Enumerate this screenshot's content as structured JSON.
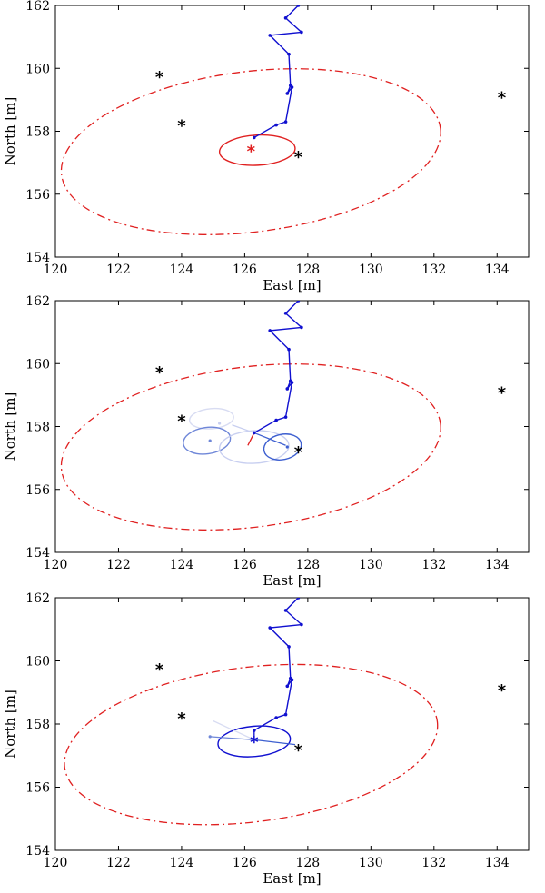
{
  "chart_data": [
    {
      "type": "line",
      "xlabel": "East [m]",
      "ylabel": "North [m]",
      "xlim": [
        120,
        135
      ],
      "ylim": [
        154,
        162
      ],
      "xticks": [
        "120",
        "122",
        "124",
        "126",
        "128",
        "130",
        "132",
        "134"
      ],
      "yticks": [
        "154",
        "156",
        "158",
        "160",
        "162"
      ],
      "legend": "none",
      "grid": false,
      "colors": {
        "trajectory": "#1010d0",
        "uncertainty": "#e02020",
        "landmark": "#000000"
      },
      "landmarks": [
        [
          123.3,
          159.75
        ],
        [
          124.0,
          158.2
        ],
        [
          127.7,
          157.2
        ],
        [
          134.15,
          159.1
        ]
      ],
      "trajectory": [
        [
          127.7,
          162.0
        ],
        [
          127.3,
          161.6
        ],
        [
          127.8,
          161.15
        ],
        [
          126.8,
          161.05
        ],
        [
          127.4,
          160.45
        ],
        [
          127.45,
          159.45
        ],
        [
          127.35,
          159.2
        ],
        [
          127.5,
          159.4
        ],
        [
          127.3,
          158.3
        ],
        [
          127.0,
          158.2
        ],
        [
          126.3,
          157.8
        ]
      ],
      "estimate": {
        "x": 126.2,
        "y": 157.4,
        "color": "#e02020"
      },
      "large_ellipse": {
        "cx": 126.2,
        "cy": 157.35,
        "rx": 6.05,
        "ry": 2.55,
        "angle_deg": -7,
        "color": "#e02020",
        "style": "dash-dot"
      },
      "small_ellipses": [
        {
          "cx": 126.4,
          "cy": 157.4,
          "rx": 1.2,
          "ry": 0.48,
          "angle_deg": -3,
          "color": "#e02020"
        }
      ],
      "branches": []
    },
    {
      "type": "line",
      "xlabel": "East [m]",
      "ylabel": "North [m]",
      "xlim": [
        120,
        135
      ],
      "ylim": [
        154,
        162
      ],
      "xticks": [
        "120",
        "122",
        "124",
        "126",
        "128",
        "130",
        "132",
        "134"
      ],
      "yticks": [
        "154",
        "156",
        "158",
        "160",
        "162"
      ],
      "legend": "none",
      "grid": false,
      "colors": {
        "trajectory": "#1010d0",
        "uncertainty": "#e02020",
        "landmark": "#000000"
      },
      "landmarks": [
        [
          123.3,
          159.75
        ],
        [
          124.0,
          158.2
        ],
        [
          127.7,
          157.2
        ],
        [
          134.15,
          159.1
        ]
      ],
      "trajectory": [
        [
          127.7,
          162.0
        ],
        [
          127.3,
          161.6
        ],
        [
          127.8,
          161.15
        ],
        [
          126.8,
          161.05
        ],
        [
          127.4,
          160.45
        ],
        [
          127.45,
          159.45
        ],
        [
          127.35,
          159.2
        ],
        [
          127.5,
          159.4
        ],
        [
          127.3,
          158.3
        ],
        [
          127.0,
          158.2
        ],
        [
          126.3,
          157.8
        ]
      ],
      "estimate": null,
      "large_ellipse": {
        "cx": 126.2,
        "cy": 157.35,
        "rx": 6.05,
        "ry": 2.55,
        "angle_deg": -7,
        "color": "#e02020",
        "style": "dash-dot"
      },
      "small_ellipses": [
        {
          "cx": 124.95,
          "cy": 158.25,
          "rx": 0.7,
          "ry": 0.32,
          "angle_deg": -5,
          "color": "#d8dcf2"
        },
        {
          "cx": 124.8,
          "cy": 157.55,
          "rx": 0.75,
          "ry": 0.42,
          "angle_deg": -8,
          "color": "#6f87d8"
        },
        {
          "cx": 126.3,
          "cy": 157.35,
          "rx": 1.1,
          "ry": 0.52,
          "angle_deg": -3,
          "color": "#c8cff0"
        },
        {
          "cx": 127.2,
          "cy": 157.35,
          "rx": 0.6,
          "ry": 0.4,
          "angle_deg": -12,
          "color": "#3d5fd0"
        }
      ],
      "branches": [
        {
          "from": [
            126.3,
            157.8
          ],
          "to": [
            126.1,
            157.4
          ],
          "color": "#e02020"
        },
        {
          "from": [
            126.3,
            157.8
          ],
          "to": [
            125.6,
            158.05
          ],
          "color": "#c8cff0"
        },
        {
          "from": [
            126.3,
            157.8
          ],
          "to": [
            127.3,
            157.4
          ],
          "color": "#3d5fd0"
        }
      ],
      "branch_points": [
        {
          "x": 125.2,
          "y": 158.1,
          "color": "#c8cff0"
        },
        {
          "x": 124.9,
          "y": 157.55,
          "color": "#6f87d8"
        },
        {
          "x": 127.35,
          "y": 157.35,
          "color": "#3d5fd0"
        }
      ]
    },
    {
      "type": "line",
      "xlabel": "East [m]",
      "ylabel": "North [m]",
      "xlim": [
        120,
        135
      ],
      "ylim": [
        154,
        162
      ],
      "xticks": [
        "120",
        "122",
        "124",
        "126",
        "128",
        "130",
        "132",
        "134"
      ],
      "yticks": [
        "154",
        "156",
        "158",
        "160",
        "162"
      ],
      "legend": "none",
      "grid": false,
      "colors": {
        "trajectory": "#1010d0",
        "uncertainty": "#e02020",
        "landmark": "#000000"
      },
      "landmarks": [
        [
          123.3,
          159.75
        ],
        [
          124.0,
          158.2
        ],
        [
          127.7,
          157.2
        ],
        [
          134.15,
          159.1
        ]
      ],
      "trajectory": [
        [
          127.7,
          162.0
        ],
        [
          127.3,
          161.6
        ],
        [
          127.8,
          161.15
        ],
        [
          126.8,
          161.05
        ],
        [
          127.4,
          160.45
        ],
        [
          127.45,
          159.45
        ],
        [
          127.35,
          159.2
        ],
        [
          127.5,
          159.4
        ],
        [
          127.3,
          158.3
        ],
        [
          127.0,
          158.2
        ],
        [
          126.3,
          157.8
        ]
      ],
      "estimate": {
        "x": 126.3,
        "y": 157.45,
        "color": "#1010d0"
      },
      "large_ellipse": {
        "cx": 126.2,
        "cy": 157.35,
        "rx": 5.95,
        "ry": 2.45,
        "angle_deg": -7,
        "color": "#e02020",
        "style": "dash-dot"
      },
      "small_ellipses": [
        {
          "cx": 126.3,
          "cy": 157.45,
          "rx": 1.15,
          "ry": 0.48,
          "angle_deg": -5,
          "color": "#1010d0"
        }
      ],
      "branches": [
        {
          "from": [
            126.3,
            157.8
          ],
          "to": [
            126.3,
            157.5
          ],
          "color": "#1010d0"
        },
        {
          "from": [
            126.3,
            157.5
          ],
          "to": [
            124.9,
            157.6
          ],
          "color": "#6f87d8"
        },
        {
          "from": [
            126.3,
            157.5
          ],
          "to": [
            125.0,
            158.1
          ],
          "color": "#d8dcf2"
        },
        {
          "from": [
            126.3,
            157.5
          ],
          "to": [
            127.6,
            157.35
          ],
          "color": "#3d5fd0"
        }
      ],
      "branch_points": [
        {
          "x": 124.9,
          "y": 157.6,
          "color": "#6f87d8"
        }
      ]
    }
  ]
}
